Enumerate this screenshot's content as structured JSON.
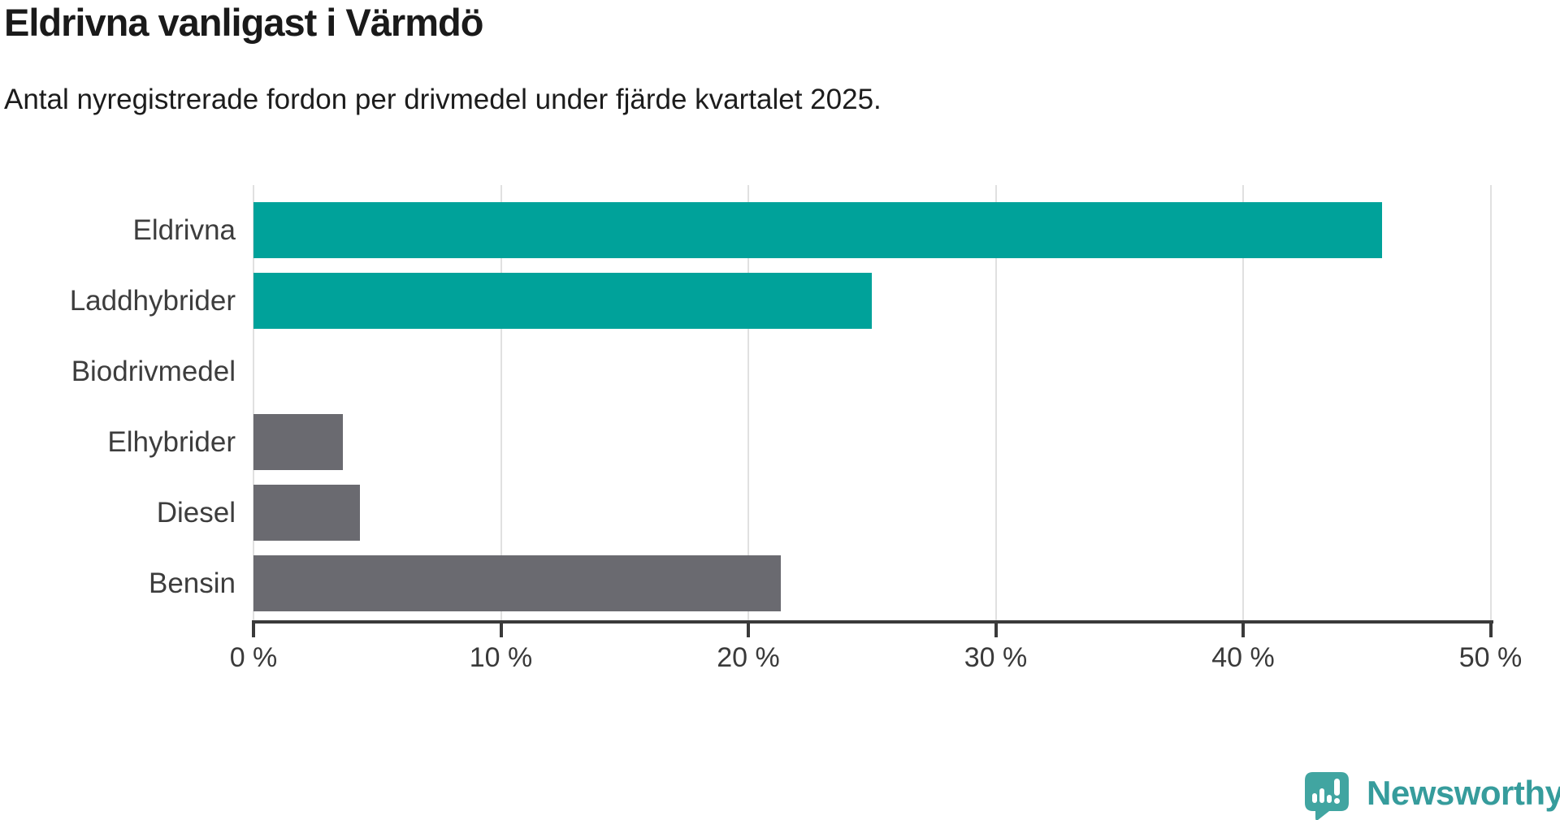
{
  "header": {
    "title": "Eldrivna vanligast i Värmdö",
    "subtitle": "Antal nyregistrerade fordon per drivmedel under fjärde kvartalet 2025."
  },
  "chart_data": {
    "type": "bar",
    "orientation": "horizontal",
    "title": "Eldrivna vanligast i Värmdö",
    "subtitle": "Antal nyregistrerade fordon per drivmedel under fjärde kvartalet 2025.",
    "categories": [
      "Eldrivna",
      "Laddhybrider",
      "Biodrivmedel",
      "Elhybrider",
      "Diesel",
      "Bensin"
    ],
    "values": [
      45.6,
      25.0,
      0.0,
      3.6,
      4.3,
      21.3
    ],
    "unit": "%",
    "xlim": [
      0,
      50
    ],
    "x_ticks": [
      0,
      10,
      20,
      30,
      40,
      50
    ],
    "x_tick_labels": [
      "0 %",
      "10 %",
      "20 %",
      "30 %",
      "40 %",
      "50 %"
    ],
    "bar_colors": [
      "#00a29a",
      "#00a29a",
      "#00a29a",
      "#6a6a70",
      "#6a6a70",
      "#6a6a70"
    ],
    "highlight_color": "#00a29a",
    "muted_color": "#6a6a70",
    "grid": true,
    "legend": "none"
  },
  "branding": {
    "name": "Newsworthy",
    "logo_icon": "newsworthy-pin-chart-icon",
    "color": "#369c9c"
  }
}
